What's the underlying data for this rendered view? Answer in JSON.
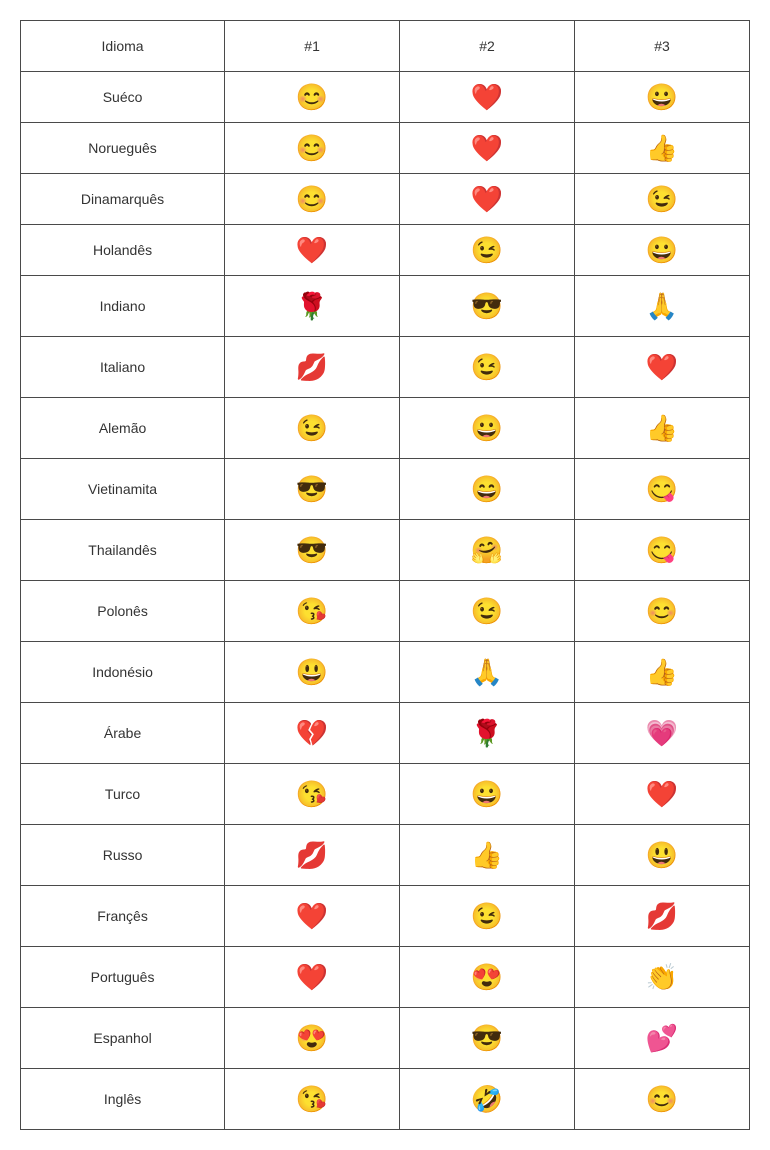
{
  "table": {
    "columns": [
      "Idioma",
      "#1",
      "#2",
      "#3"
    ],
    "rows": [
      {
        "lang": "Suéco",
        "e1": "😊",
        "e2": "❤️",
        "e3": "😀",
        "big": false
      },
      {
        "lang": "Norueguês",
        "e1": "😊",
        "e2": "❤️",
        "e3": "👍",
        "big": false
      },
      {
        "lang": "Dinamarquês",
        "e1": "😊",
        "e2": "❤️",
        "e3": "😉",
        "big": false
      },
      {
        "lang": "Holandês",
        "e1": "❤️",
        "e2": "😉",
        "e3": "😀",
        "big": false
      },
      {
        "lang": "Indiano",
        "e1": "🌹",
        "e2": "😎",
        "e3": "🙏",
        "big": true
      },
      {
        "lang": "Italiano",
        "e1": "💋",
        "e2": "😉",
        "e3": "❤️",
        "big": true
      },
      {
        "lang": "Alemão",
        "e1": "😉",
        "e2": "😀",
        "e3": "👍",
        "big": true
      },
      {
        "lang": "Vietinamita",
        "e1": "😎",
        "e2": "😄",
        "e3": "😋",
        "big": true
      },
      {
        "lang": "Thailandês",
        "e1": "😎",
        "e2": "🤗",
        "e3": "😋",
        "big": true
      },
      {
        "lang": "Polonês",
        "e1": "😘",
        "e2": "😉",
        "e3": "😊",
        "big": true
      },
      {
        "lang": "Indonésio",
        "e1": "😃",
        "e2": "🙏",
        "e3": "👍",
        "big": true
      },
      {
        "lang": "Árabe",
        "e1": "💔",
        "e2": "🌹",
        "e3": "💗",
        "big": true
      },
      {
        "lang": "Turco",
        "e1": "😘",
        "e2": "😀",
        "e3": "❤️",
        "big": true
      },
      {
        "lang": "Russo",
        "e1": "💋",
        "e2": "👍",
        "e3": "😃",
        "big": true
      },
      {
        "lang": "Françês",
        "e1": "❤️",
        "e2": "😉",
        "e3": "💋",
        "big": true
      },
      {
        "lang": "Português",
        "e1": "❤️",
        "e2": "😍",
        "e3": "👏",
        "big": true
      },
      {
        "lang": "Espanhol",
        "e1": "😍",
        "e2": "😎",
        "e3": "💕",
        "big": true
      },
      {
        "lang": "Inglês",
        "e1": "😘",
        "e2": "🤣",
        "e3": "😊",
        "big": true
      }
    ],
    "border_color": "#4a4a4a",
    "background_color": "#ffffff",
    "text_color": "#333333",
    "font_family": "Verdana",
    "header_fontsize": 14,
    "cell_fontsize": 14,
    "emoji_fontsize": 26
  }
}
